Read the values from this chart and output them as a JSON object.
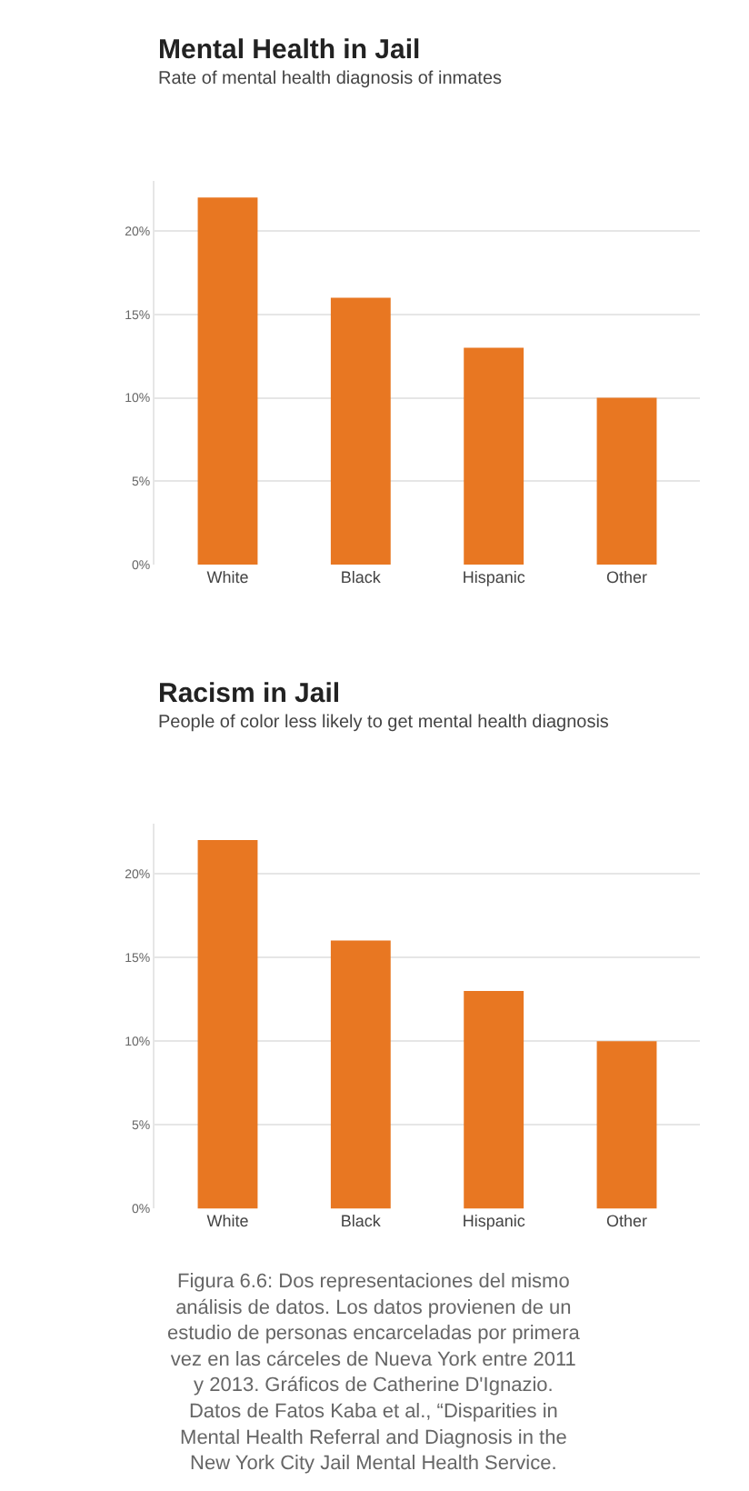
{
  "chart_data": [
    {
      "type": "bar",
      "title": "Mental Health in Jail",
      "subtitle": "Rate of mental health diagnosis of inmates",
      "categories": [
        "White",
        "Black",
        "Hispanic",
        "Other"
      ],
      "values": [
        22,
        16,
        13,
        10
      ],
      "color": "#e87722",
      "ylim": [
        0,
        23
      ],
      "yticks": [
        {
          "value": 0,
          "label": "0%"
        },
        {
          "value": 5,
          "label": "5%"
        },
        {
          "value": 10,
          "label": "10%"
        },
        {
          "value": 15,
          "label": "15%"
        },
        {
          "value": 20,
          "label": "20%"
        }
      ],
      "grid": "y"
    },
    {
      "type": "bar",
      "title": "Racism in Jail",
      "subtitle": "People of color less likely to get mental health diagnosis",
      "categories": [
        "White",
        "Black",
        "Hispanic",
        "Other"
      ],
      "values": [
        22,
        16,
        13,
        10
      ],
      "color": "#e87722",
      "ylim": [
        0,
        23
      ],
      "yticks": [
        {
          "value": 0,
          "label": "0%"
        },
        {
          "value": 5,
          "label": "5%"
        },
        {
          "value": 10,
          "label": "10%"
        },
        {
          "value": 15,
          "label": "15%"
        },
        {
          "value": 20,
          "label": "20%"
        }
      ],
      "grid": "y",
      "annotations": [
        "Figura 6.6: Dos representaciones del mismo análisis de datos. Los datos provienen de un estudio de personas encarceladas por primera vez en las cárceles de Nueva York entre 2011 y 2013. Gráficos de Catherine D'Ignazio. Datos de Fatos Kaba et al., “Disparities in Mental Health Referral and Diagnosis in the New York City Jail Mental Health Service."
      ]
    }
  ]
}
